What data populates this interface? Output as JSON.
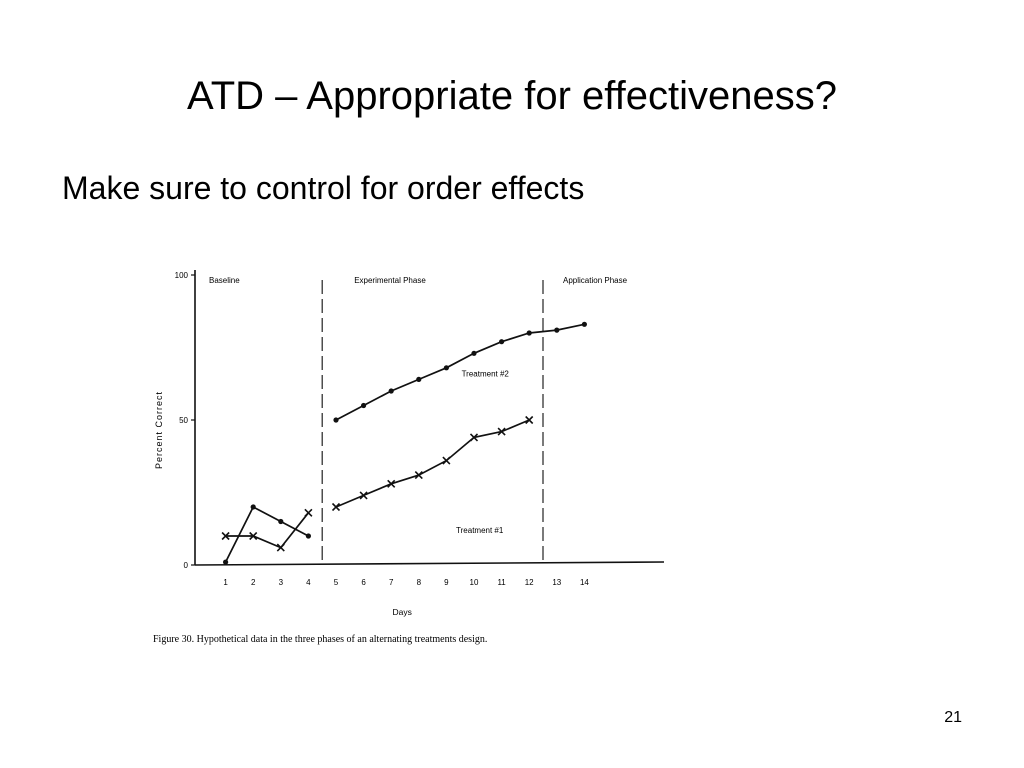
{
  "slide": {
    "title": "ATD – Appropriate for effectiveness?",
    "bullet": "Make sure to control for order effects",
    "number": "21"
  },
  "chart_data": {
    "type": "line",
    "xlabel": "Days",
    "ylabel": "Percent Correct",
    "x_ticks": [
      1,
      2,
      3,
      4,
      5,
      6,
      7,
      8,
      9,
      10,
      11,
      12,
      13,
      14
    ],
    "y_ticks": [
      0,
      50,
      100
    ],
    "ylim": [
      0,
      100
    ],
    "xlim": [
      0,
      14
    ],
    "phases": [
      {
        "label": "Baseline",
        "start_day": 0,
        "end_day": 4.5
      },
      {
        "label": "Experimental Phase",
        "start_day": 4.5,
        "end_day": 12.5
      },
      {
        "label": "Application Phase",
        "start_day": 12.5,
        "end_day": 14
      }
    ],
    "series": [
      {
        "name": "Treatment #2",
        "marker": "dot",
        "segments": [
          {
            "x": [
              1,
              2,
              3,
              4
            ],
            "y": [
              1,
              20,
              15,
              10
            ]
          },
          {
            "x": [
              5,
              6,
              7,
              8,
              9,
              10,
              11,
              12,
              13,
              14
            ],
            "y": [
              50,
              55,
              60,
              64,
              68,
              73,
              77,
              80,
              81,
              83
            ]
          }
        ]
      },
      {
        "name": "Treatment #1",
        "marker": "x",
        "segments": [
          {
            "x": [
              1,
              2,
              3,
              4
            ],
            "y": [
              10,
              10,
              6,
              18
            ]
          },
          {
            "x": [
              5,
              6,
              7,
              8,
              9,
              10,
              11,
              12
            ],
            "y": [
              20,
              24,
              28,
              31,
              36,
              44,
              46,
              50
            ]
          }
        ]
      }
    ],
    "caption": "Figure 30. Hypothetical data in the three phases of an alternating treatments design."
  }
}
